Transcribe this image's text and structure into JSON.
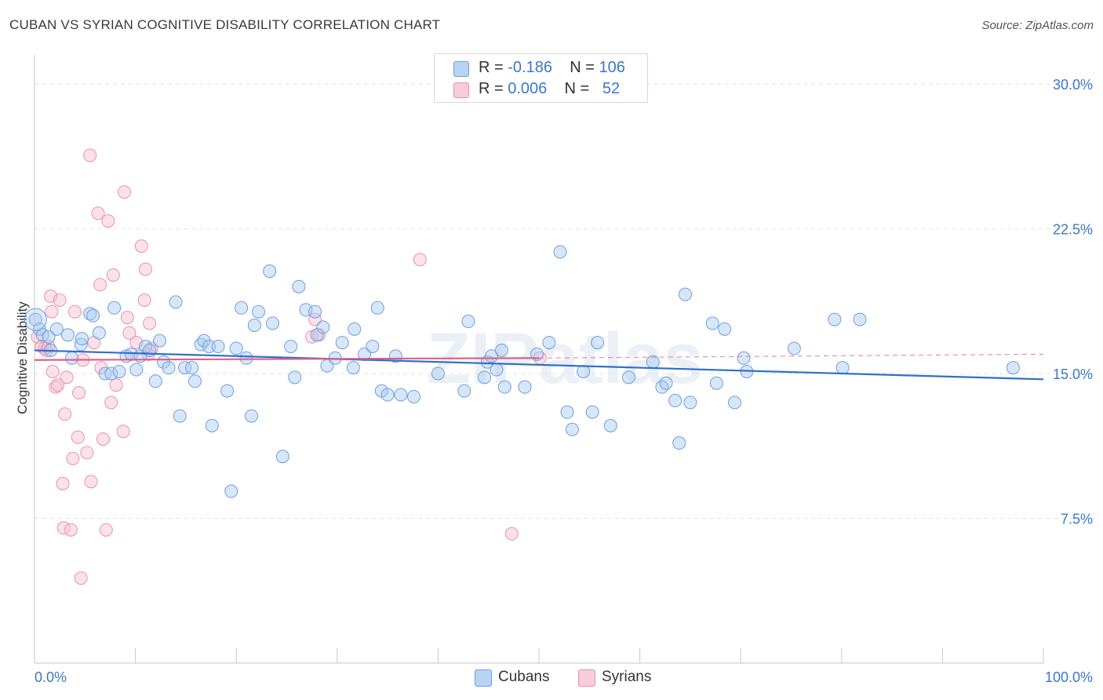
{
  "header": {
    "title": "CUBAN VS SYRIAN COGNITIVE DISABILITY CORRELATION CHART",
    "source": "Source: ZipAtlas.com"
  },
  "legend": {
    "cubans": {
      "r_label": "R =",
      "r_value": "-0.186",
      "n_label": "N =",
      "n_value": "106"
    },
    "syrians": {
      "r_label": "R =",
      "r_value": "0.006",
      "n_label": "N =",
      "n_value": "52"
    }
  },
  "bottom_legend": {
    "cubans": "Cubans",
    "syrians": "Syrians"
  },
  "watermark": "ZIPatlas",
  "colors": {
    "cubans_fill": "#a9c9f0",
    "cubans_stroke": "#6c9ee0",
    "cubans_line": "#2e6fcf",
    "syrians_fill": "#f6bfd0",
    "syrians_stroke": "#e890ae",
    "syrians_line": "#e0608a",
    "axis_label": "#3a78c8",
    "grid": "#e2e2e2"
  },
  "chart_data": {
    "type": "scatter",
    "title": "CUBAN VS SYRIAN COGNITIVE DISABILITY CORRELATION CHART",
    "xlabel": "",
    "ylabel": "Cognitive Disability",
    "xlim": [
      0,
      100
    ],
    "ylim": [
      0,
      31.5
    ],
    "x_tick_labels": [
      "0.0%",
      "100.0%"
    ],
    "y_ticks": [
      7.5,
      15.0,
      22.5,
      30.0
    ],
    "y_tick_labels": [
      "7.5%",
      "15.0%",
      "22.5%",
      "30.0%"
    ],
    "grid": true,
    "legend_position": "top-center",
    "series": [
      {
        "name": "Cubans",
        "trend": {
          "x": [
            0,
            100
          ],
          "y": [
            16.2,
            14.7
          ],
          "style": "solid"
        },
        "points": [
          [
            0.1,
            17.8
          ],
          [
            0.5,
            17.3
          ],
          [
            0.8,
            17.0
          ],
          [
            1.4,
            16.9
          ],
          [
            1.6,
            16.2
          ],
          [
            2.2,
            17.3
          ],
          [
            3.3,
            17.0
          ],
          [
            3.7,
            15.8
          ],
          [
            4.6,
            16.5
          ],
          [
            4.7,
            16.8
          ],
          [
            5.5,
            18.1
          ],
          [
            5.8,
            18.0
          ],
          [
            6.4,
            17.1
          ],
          [
            7.0,
            15.0
          ],
          [
            7.6,
            15.0
          ],
          [
            7.9,
            18.4
          ],
          [
            8.4,
            15.1
          ],
          [
            9.1,
            15.9
          ],
          [
            9.6,
            16.0
          ],
          [
            10.1,
            15.2
          ],
          [
            10.5,
            15.9
          ],
          [
            11.0,
            16.4
          ],
          [
            11.4,
            16.2
          ],
          [
            12.0,
            14.6
          ],
          [
            12.4,
            16.7
          ],
          [
            12.8,
            15.6
          ],
          [
            13.3,
            15.3
          ],
          [
            14.0,
            18.7
          ],
          [
            14.4,
            12.8
          ],
          [
            14.9,
            15.3
          ],
          [
            15.6,
            15.3
          ],
          [
            15.9,
            14.6
          ],
          [
            16.5,
            16.5
          ],
          [
            16.8,
            16.7
          ],
          [
            17.3,
            16.4
          ],
          [
            17.6,
            12.3
          ],
          [
            18.2,
            16.4
          ],
          [
            19.1,
            14.1
          ],
          [
            19.5,
            8.9
          ],
          [
            20.0,
            16.3
          ],
          [
            20.5,
            18.4
          ],
          [
            21.0,
            15.8
          ],
          [
            21.5,
            12.8
          ],
          [
            21.8,
            17.5
          ],
          [
            22.2,
            18.2
          ],
          [
            23.3,
            20.3
          ],
          [
            23.6,
            17.6
          ],
          [
            24.6,
            10.7
          ],
          [
            25.4,
            16.4
          ],
          [
            25.8,
            14.8
          ],
          [
            26.2,
            19.5
          ],
          [
            26.9,
            18.3
          ],
          [
            27.8,
            18.2
          ],
          [
            28.0,
            17.0
          ],
          [
            28.6,
            17.4
          ],
          [
            29.0,
            15.4
          ],
          [
            29.8,
            15.8
          ],
          [
            30.5,
            16.6
          ],
          [
            31.6,
            15.3
          ],
          [
            31.7,
            17.3
          ],
          [
            32.7,
            16.0
          ],
          [
            33.5,
            16.4
          ],
          [
            34.0,
            18.4
          ],
          [
            34.4,
            14.1
          ],
          [
            35.0,
            13.9
          ],
          [
            35.8,
            15.9
          ],
          [
            36.3,
            13.9
          ],
          [
            37.6,
            13.8
          ],
          [
            40.0,
            15.0
          ],
          [
            42.6,
            14.1
          ],
          [
            43.0,
            17.7
          ],
          [
            44.6,
            14.8
          ],
          [
            44.9,
            15.6
          ],
          [
            45.3,
            15.9
          ],
          [
            45.8,
            15.2
          ],
          [
            46.3,
            16.2
          ],
          [
            46.6,
            14.3
          ],
          [
            48.6,
            14.3
          ],
          [
            49.8,
            16.0
          ],
          [
            51.0,
            16.6
          ],
          [
            52.1,
            21.3
          ],
          [
            52.8,
            13.0
          ],
          [
            53.3,
            12.1
          ],
          [
            54.4,
            15.1
          ],
          [
            55.3,
            13.0
          ],
          [
            55.8,
            16.6
          ],
          [
            57.1,
            12.3
          ],
          [
            58.9,
            14.8
          ],
          [
            61.3,
            15.6
          ],
          [
            62.2,
            14.3
          ],
          [
            62.6,
            14.5
          ],
          [
            63.5,
            13.6
          ],
          [
            63.9,
            11.4
          ],
          [
            64.5,
            19.1
          ],
          [
            65.0,
            13.5
          ],
          [
            67.2,
            17.6
          ],
          [
            67.6,
            14.5
          ],
          [
            68.4,
            17.3
          ],
          [
            69.4,
            13.5
          ],
          [
            70.3,
            15.8
          ],
          [
            70.6,
            15.1
          ],
          [
            75.3,
            16.3
          ],
          [
            79.3,
            17.8
          ],
          [
            80.1,
            15.3
          ],
          [
            81.8,
            17.8
          ],
          [
            97.0,
            15.3
          ]
        ]
      },
      {
        "name": "Syrians",
        "trend": {
          "x": [
            0,
            50,
            100
          ],
          "y": [
            15.7,
            15.8,
            16.0
          ],
          "style": "solid-then-dashed"
        },
        "points": [
          [
            0.3,
            16.9
          ],
          [
            0.7,
            16.4
          ],
          [
            1.0,
            16.3
          ],
          [
            1.2,
            16.2
          ],
          [
            1.4,
            16.4
          ],
          [
            1.6,
            19.0
          ],
          [
            1.7,
            18.2
          ],
          [
            1.8,
            15.1
          ],
          [
            2.1,
            14.3
          ],
          [
            2.3,
            14.4
          ],
          [
            2.5,
            18.8
          ],
          [
            2.8,
            9.3
          ],
          [
            2.9,
            7.0
          ],
          [
            3.0,
            12.9
          ],
          [
            3.2,
            14.8
          ],
          [
            3.6,
            6.9
          ],
          [
            3.8,
            10.6
          ],
          [
            4.0,
            18.2
          ],
          [
            4.3,
            11.7
          ],
          [
            4.4,
            14.0
          ],
          [
            4.6,
            4.4
          ],
          [
            4.8,
            15.7
          ],
          [
            5.2,
            10.9
          ],
          [
            5.5,
            26.3
          ],
          [
            5.6,
            9.4
          ],
          [
            5.9,
            16.6
          ],
          [
            6.3,
            23.3
          ],
          [
            6.5,
            19.6
          ],
          [
            6.6,
            15.3
          ],
          [
            6.8,
            11.6
          ],
          [
            7.1,
            6.9
          ],
          [
            7.3,
            22.9
          ],
          [
            7.6,
            13.5
          ],
          [
            7.8,
            20.1
          ],
          [
            8.1,
            14.4
          ],
          [
            8.8,
            12.0
          ],
          [
            8.9,
            24.4
          ],
          [
            9.2,
            17.9
          ],
          [
            9.4,
            17.1
          ],
          [
            10.1,
            16.6
          ],
          [
            10.6,
            21.6
          ],
          [
            10.9,
            18.8
          ],
          [
            11.0,
            20.4
          ],
          [
            11.3,
            16.0
          ],
          [
            11.4,
            17.6
          ],
          [
            11.6,
            16.3
          ],
          [
            27.5,
            16.9
          ],
          [
            27.8,
            17.8
          ],
          [
            28.2,
            17.0
          ],
          [
            38.2,
            20.9
          ],
          [
            47.3,
            6.7
          ],
          [
            50.1,
            15.8
          ]
        ]
      }
    ]
  }
}
